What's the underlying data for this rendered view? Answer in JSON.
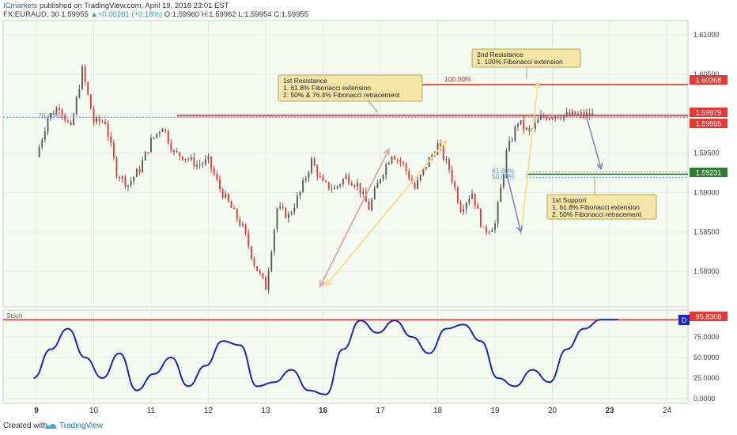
{
  "header": {
    "publisher": "ICmarkets",
    "published_text": "published on TradingView.com, April 19, 2018 23:01 EST",
    "symbol": "FX:EURAUD, 30",
    "last": "1.59955",
    "change": "+0.00281 (+0.18%)",
    "ohlc": "O:1.59960 H:1.59962 L:1.59954 C:1.59955"
  },
  "footer": {
    "created_with": "Created with",
    "brand": "TradingView"
  },
  "colors": {
    "panel_bg": "#f4fbf0",
    "candle_up": "#5a5a5a",
    "candle_down": "#e53935",
    "resistance": "#e53935",
    "support": "#2e7d32",
    "stoch_line": "#1a23c9",
    "fib_dotted": "#6b8fd6",
    "callout_bg": "#f5e6a8",
    "callout_border": "#b9a35a",
    "arrow_down": "#7f86c8",
    "arrow_up_yellow": "#ffd98a",
    "arrow_up_red": "#e7a0a0"
  },
  "chart_data": [
    {
      "type": "line",
      "title": "FX:EURAUD, 30",
      "ylim": [
        1.5755,
        1.6118
      ],
      "y_ticks": [
        "1.61000",
        "1.60500",
        "1.60000",
        "1.59500",
        "1.59000",
        "1.58500",
        "1.58000"
      ],
      "x_labels": [
        "9",
        "10",
        "11",
        "12",
        "13",
        "16",
        "17",
        "18",
        "19",
        "20",
        "23",
        "24"
      ],
      "bold_x_labels": [
        "9",
        "16",
        "23"
      ],
      "price_path": {
        "x": [
          0,
          0.2,
          0.4,
          0.6,
          0.8,
          1.0,
          1.2,
          1.4,
          1.6,
          1.8,
          2.0,
          2.2,
          2.4,
          2.6,
          2.8,
          3.0,
          3.2,
          3.4,
          3.6,
          3.8,
          4.0,
          4.2,
          4.4,
          4.6,
          4.8,
          5.0,
          5.2,
          5.4,
          5.6,
          5.8,
          6.0,
          6.2,
          6.4,
          6.6,
          6.8,
          7.0,
          7.2,
          7.4,
          7.6,
          7.8,
          8.0,
          8.2,
          8.4,
          8.6,
          8.8,
          9.0,
          9.2,
          9.4,
          9.6,
          9.8,
          10.0,
          10.2
        ],
        "close": [
          1.5945,
          1.5995,
          1.601,
          1.598,
          1.6055,
          1.599,
          1.599,
          1.5925,
          1.591,
          1.593,
          1.5965,
          1.5985,
          1.595,
          1.5945,
          1.5935,
          1.594,
          1.5905,
          1.588,
          1.5855,
          1.581,
          1.578,
          1.588,
          1.587,
          1.59,
          1.594,
          1.591,
          1.5905,
          1.592,
          1.591,
          1.588,
          1.592,
          1.595,
          1.5935,
          1.5905,
          1.5935,
          1.596,
          1.593,
          1.588,
          1.59,
          1.585,
          1.586,
          1.595,
          1.599,
          1.5975,
          1.5995,
          1.5998,
          1.5998,
          1.5998,
          1.5998,
          1.5998,
          1.5998,
          1.5998
        ]
      },
      "levels": [
        {
          "label": "1.60368",
          "value": 1.60368,
          "color": "#e53935",
          "fib_label": "100.00%"
        },
        {
          "label": "1.59979",
          "value": 1.59979,
          "color": "#e53935"
        },
        {
          "label": "1.59955",
          "value": 1.59955,
          "color": "#e53935",
          "fib_label": "76.40%"
        },
        {
          "label": "1.59231",
          "value": 1.59231,
          "color": "#2e7d32",
          "fib_labels": [
            "61.80%",
            "50.00%"
          ]
        }
      ],
      "annotations": [
        {
          "lines": [
            "1st Resistance",
            "1. 61.8% Fibonacci extension",
            "2. 50% & 76.4% Fibonacci retracement"
          ]
        },
        {
          "lines": [
            "2nd Resistance",
            "1. 100% Fibonacci extension"
          ]
        },
        {
          "lines": [
            "1st Support",
            "1. 61.8% Fibonacci extension",
            "2. 50% Fibonacci retracement"
          ]
        }
      ]
    },
    {
      "type": "line",
      "title": "Stoch",
      "ylim": [
        0,
        100
      ],
      "y_ticks": [
        "75.0000",
        "50.0000",
        "25.0000",
        "0.0000"
      ],
      "current_label": "95.8308",
      "current_value": 95.8308,
      "series": [
        {
          "name": "Stoch",
          "x": [
            0,
            0.3,
            0.6,
            0.9,
            1.2,
            1.5,
            1.8,
            2.1,
            2.4,
            2.7,
            3.0,
            3.3,
            3.6,
            3.9,
            4.2,
            4.5,
            4.8,
            5.1,
            5.4,
            5.7,
            6.0,
            6.3,
            6.6,
            6.9,
            7.2,
            7.5,
            7.8,
            8.1,
            8.4,
            8.7,
            9.0,
            9.3,
            9.6,
            9.9,
            10.2
          ],
          "values": [
            25,
            60,
            85,
            50,
            25,
            55,
            10,
            30,
            50,
            15,
            40,
            70,
            65,
            15,
            20,
            35,
            10,
            5,
            60,
            95,
            80,
            95,
            75,
            55,
            85,
            90,
            70,
            25,
            15,
            35,
            20,
            60,
            85,
            96,
            96
          ]
        }
      ],
      "indicator_badge": "D"
    }
  ]
}
